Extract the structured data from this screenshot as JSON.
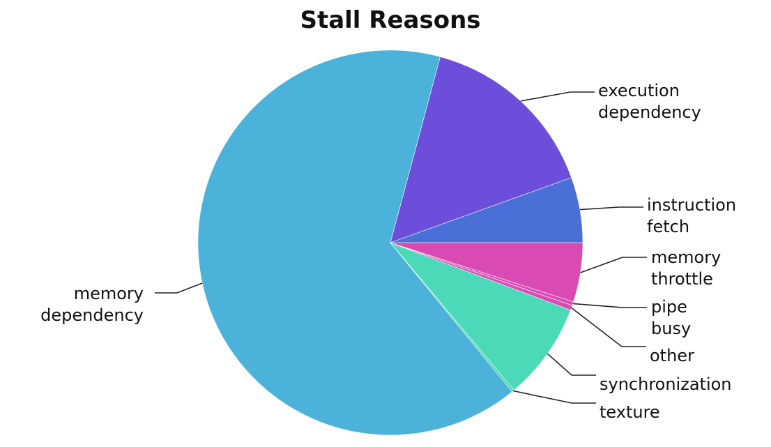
{
  "chart_data": {
    "type": "pie",
    "title": "Stall Reasons",
    "start_angle_deg": 0,
    "direction": "counterclockwise",
    "slices": [
      {
        "label": "instruction fetch",
        "lines": [
          "instruction",
          "fetch"
        ],
        "value": 5.3,
        "color": "#4a6fd6"
      },
      {
        "label": "execution dependency",
        "lines": [
          "execution",
          "dependency"
        ],
        "value": 14.8,
        "color": "#6c4edb"
      },
      {
        "label": "memory dependency",
        "lines": [
          "memory",
          "dependency"
        ],
        "value": 62.8,
        "color": "#4bb3d9"
      },
      {
        "label": "texture",
        "lines": [
          "texture"
        ],
        "value": 0.2,
        "color": "#4bd6b8"
      },
      {
        "label": "synchronization",
        "lines": [
          "synchronization"
        ],
        "value": 7.9,
        "color": "#4bd9b8"
      },
      {
        "label": "other",
        "lines": [
          "other"
        ],
        "value": 0.4,
        "color": "#d94bb3"
      },
      {
        "label": "pipe busy",
        "lines": [
          "pipe",
          "busy"
        ],
        "value": 0.3,
        "color": "#d94bb3"
      },
      {
        "label": "memory throttle",
        "lines": [
          "memory",
          "throttle"
        ],
        "value": 4.8,
        "color": "#d94bb3"
      }
    ]
  }
}
